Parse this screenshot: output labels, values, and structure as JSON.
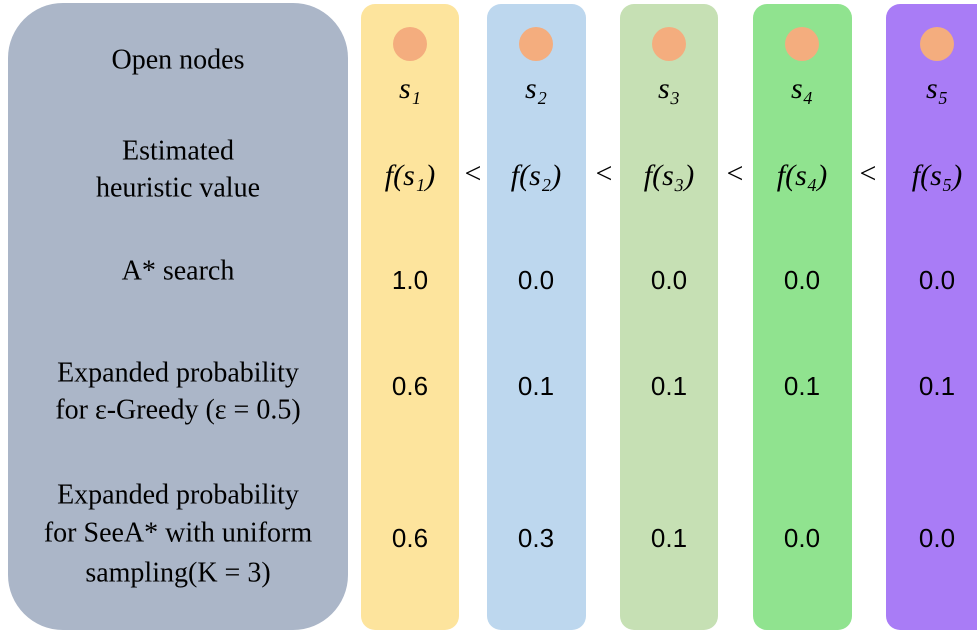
{
  "row_labels": [
    [
      "Open nodes"
    ],
    [
      "Estimated",
      "heuristic value"
    ],
    [
      "A* search"
    ],
    [
      "Expanded probability",
      "for ε-Greedy (ε = 0.5)"
    ],
    [
      "Expanded probability",
      "for SeeA* with uniform",
      "sampling(K = 3)"
    ]
  ],
  "nodes": [
    {
      "label": "s₁",
      "heuristic": "f(s₁)",
      "astar": "1.0",
      "epsilon_greedy": "0.6",
      "seea_uniform": "0.6"
    },
    {
      "label": "s₂",
      "heuristic": "f(s₂)",
      "astar": "0.0",
      "epsilon_greedy": "0.1",
      "seea_uniform": "0.3"
    },
    {
      "label": "s₃",
      "heuristic": "f(s₃)",
      "astar": "0.0",
      "epsilon_greedy": "0.1",
      "seea_uniform": "0.1"
    },
    {
      "label": "s₄",
      "heuristic": "f(s₄)",
      "astar": "0.0",
      "epsilon_greedy": "0.1",
      "seea_uniform": "0.0"
    },
    {
      "label": "s₅",
      "heuristic": "f(s₅)",
      "astar": "0.0",
      "epsilon_greedy": "0.1",
      "seea_uniform": "0.0"
    }
  ],
  "comparators": [
    "<",
    "<",
    "<",
    "<"
  ]
}
